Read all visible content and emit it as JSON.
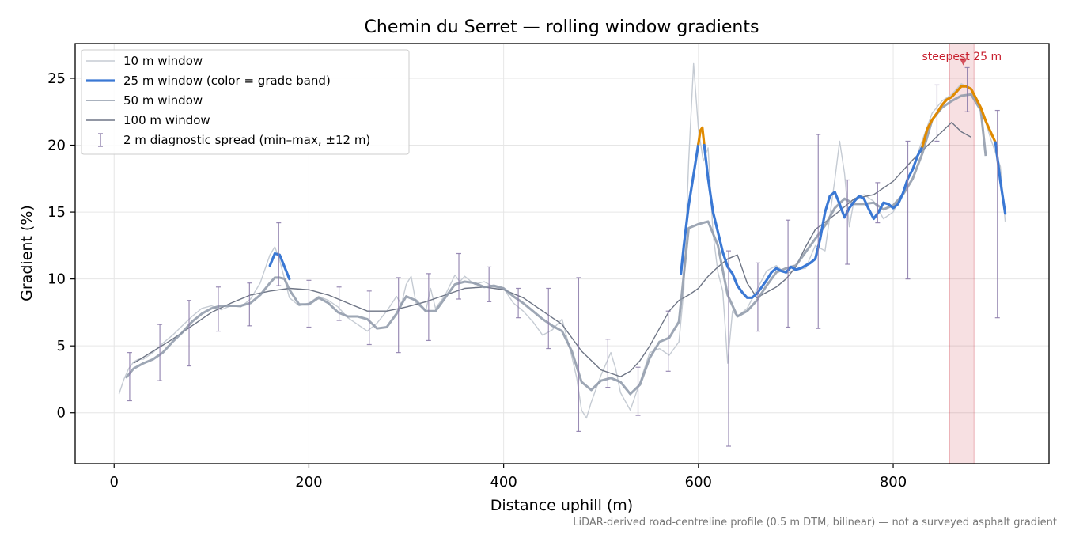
{
  "chart_data": {
    "type": "line",
    "title": "Chemin du Serret — rolling window gradients",
    "xlabel": "Distance uphill (m)",
    "ylabel": "Gradient (%)",
    "xlim": [
      -40,
      960
    ],
    "ylim": [
      -3.8,
      27.6
    ],
    "xticks": [
      0,
      200,
      400,
      600,
      800
    ],
    "yticks": [
      0,
      5,
      10,
      15,
      20,
      25
    ],
    "grid": true,
    "legend_position": "top-left",
    "footnote": "LiDAR-derived road-centreline profile (0.5 m DTM, bilinear) — not a surveyed asphalt gradient",
    "annotation": {
      "text": "steepest 25 m",
      "x": 872,
      "y": 26.2,
      "band": [
        858,
        883
      ],
      "color": "#c8202f"
    },
    "grade_band_colors": {
      "below_20": "#3a78d4",
      "20_to_25": "#e08a00"
    },
    "legend": [
      {
        "label": "10 m window",
        "color": "#c5cbd3",
        "kind": "line"
      },
      {
        "label": "25 m window (color = grade band)",
        "color": "#3a78d4",
        "kind": "thick-line"
      },
      {
        "label": "50 m window",
        "color": "#8d98a8",
        "kind": "line"
      },
      {
        "label": "100 m window",
        "color": "#6e7585",
        "kind": "line"
      },
      {
        "label": "2 m diagnostic spread (min–max, ±12 m)",
        "color": "#8878a8",
        "kind": "errorbar"
      }
    ],
    "series": [
      {
        "name": "10 m window",
        "color": "#c5cbd3",
        "x": [
          5,
          10,
          15,
          20,
          25,
          30,
          40,
          50,
          60,
          70,
          80,
          90,
          100,
          110,
          120,
          130,
          140,
          150,
          160,
          165,
          170,
          175,
          180,
          190,
          200,
          210,
          220,
          230,
          240,
          250,
          260,
          270,
          280,
          290,
          295,
          300,
          305,
          310,
          320,
          325,
          330,
          340,
          350,
          355,
          360,
          370,
          380,
          390,
          400,
          410,
          420,
          430,
          440,
          450,
          460,
          470,
          475,
          480,
          485,
          490,
          500,
          510,
          515,
          520,
          530,
          540,
          550,
          560,
          570,
          580,
          585,
          590,
          595,
          600,
          605,
          610,
          615,
          620,
          625,
          630,
          635,
          640,
          650,
          660,
          670,
          680,
          690,
          700,
          710,
          720,
          730,
          740,
          745,
          750,
          755,
          760,
          770,
          780,
          790,
          800,
          810,
          820,
          830,
          840,
          850,
          860,
          870,
          880,
          890,
          900,
          910,
          915
        ],
        "y": [
          1.4,
          2.5,
          3.3,
          3.8,
          4,
          4,
          4.5,
          5.2,
          5.8,
          6.5,
          7.2,
          7.8,
          8,
          7.7,
          8,
          7.9,
          8.5,
          9.7,
          11.8,
          12.4,
          11.4,
          10,
          8.6,
          8,
          8.2,
          8.7,
          8.4,
          7.9,
          7.1,
          6.6,
          6.1,
          6.7,
          7.6,
          8.7,
          8.1,
          9.6,
          10.2,
          8.2,
          7.6,
          9.3,
          7.8,
          8.8,
          10.3,
          9.8,
          10.2,
          9.6,
          9.8,
          9.4,
          9.3,
          8.2,
          7.6,
          6.8,
          5.8,
          6.2,
          7,
          4.2,
          2.6,
          0.2,
          -0.4,
          0.8,
          2.8,
          4.5,
          3.3,
          1.5,
          0.2,
          2.3,
          4.5,
          4.8,
          4.3,
          5.3,
          9.2,
          18.8,
          26.1,
          21.2,
          18.8,
          19.8,
          13.4,
          10.5,
          9.1,
          3.7,
          7.6,
          7.2,
          7.8,
          9.2,
          10.6,
          11,
          10.4,
          10.7,
          10.8,
          12.5,
          12.1,
          17.4,
          20.3,
          17.9,
          13.9,
          16,
          16.3,
          15.8,
          14.5,
          15,
          16.5,
          18.3,
          20.4,
          22.4,
          23.3,
          23.8,
          24.6,
          24.2,
          22.9,
          20.5,
          18.4,
          14.3
        ]
      },
      {
        "name": "25 m window (color = grade band)",
        "color": "#3a78d4",
        "segments": [
          {
            "band": "below_20",
            "x": [
              160,
              165,
              170,
              175,
              180
            ],
            "y": [
              11,
              11.9,
              11.8,
              10.9,
              10
            ]
          },
          {
            "band": "below_20",
            "x": [
              582,
              585,
              590,
              595,
              600
            ],
            "y": [
              10.4,
              12.5,
              15.5,
              17.8,
              20.1
            ]
          },
          {
            "band": "20_to_25",
            "x": [
              600,
              602,
              604,
              606
            ],
            "y": [
              20.1,
              21.1,
              21.3,
              20
            ]
          },
          {
            "band": "below_20",
            "x": [
              606,
              610,
              615,
              620,
              625,
              630,
              635,
              640,
              645,
              650,
              655,
              660,
              665,
              670,
              675,
              680,
              685,
              690,
              695,
              700,
              705,
              710,
              715,
              720,
              725,
              730,
              735,
              740,
              745,
              750,
              755,
              760,
              765,
              770,
              775,
              780,
              785,
              790,
              795,
              800,
              805,
              810,
              815,
              820,
              825,
              830
            ],
            "y": [
              20,
              17.5,
              15,
              13.5,
              12,
              10.9,
              10.4,
              9.5,
              9,
              8.6,
              8.6,
              8.9,
              9.4,
              9.9,
              10.5,
              10.8,
              10.6,
              10.5,
              10.9,
              10.7,
              10.8,
              11,
              11.2,
              11.5,
              13,
              15,
              16.2,
              16.5,
              15.6,
              14.6,
              15.3,
              15.8,
              16.2,
              16,
              15.2,
              14.5,
              15,
              15.7,
              15.6,
              15.3,
              15.6,
              16.4,
              17.5,
              18.2,
              19.2,
              19.9
            ]
          },
          {
            "band": "20_to_25",
            "x": [
              830,
              835,
              840,
              845,
              850,
              855,
              860,
              865,
              870,
              875,
              880,
              885,
              890,
              895,
              900,
              905
            ],
            "y": [
              19.9,
              21.2,
              21.9,
              22.4,
              23,
              23.4,
              23.6,
              24,
              24.4,
              24.4,
              24.2,
              23.5,
              22.8,
              21.8,
              21,
              20.2
            ]
          },
          {
            "band": "below_20",
            "x": [
              905,
              910,
              915
            ],
            "y": [
              20.2,
              17.3,
              14.9
            ]
          }
        ]
      },
      {
        "name": "50 m window",
        "color": "#8d98a8",
        "x": [
          12,
          20,
          30,
          40,
          50,
          60,
          70,
          80,
          90,
          100,
          110,
          120,
          130,
          140,
          150,
          160,
          165,
          170,
          175,
          180,
          190,
          200,
          210,
          220,
          230,
          240,
          250,
          260,
          270,
          280,
          290,
          295,
          300,
          310,
          320,
          330,
          340,
          350,
          360,
          370,
          380,
          390,
          400,
          410,
          420,
          430,
          440,
          450,
          460,
          470,
          480,
          490,
          500,
          510,
          520,
          530,
          540,
          550,
          560,
          570,
          580,
          590,
          600,
          610,
          620,
          630,
          640,
          650,
          660,
          670,
          680,
          690,
          700,
          710,
          720,
          730,
          740,
          750,
          760,
          770,
          780,
          790,
          800,
          810,
          820,
          830,
          840,
          850,
          860,
          870,
          880,
          890,
          895
        ],
        "y": [
          2.6,
          3.3,
          3.7,
          4,
          4.5,
          5.3,
          6,
          6.8,
          7.4,
          7.8,
          8,
          8,
          8,
          8.2,
          8.8,
          9.7,
          10.1,
          10.1,
          10,
          9.2,
          8.1,
          8.1,
          8.6,
          8.2,
          7.5,
          7.2,
          7.2,
          7,
          6.3,
          6.4,
          7.4,
          8.1,
          8.7,
          8.4,
          7.6,
          7.6,
          8.6,
          9.6,
          9.8,
          9.7,
          9.4,
          9.5,
          9.3,
          8.7,
          8.2,
          7.6,
          7,
          6.5,
          6.1,
          4.6,
          2.3,
          1.7,
          2.4,
          2.6,
          2.3,
          1.4,
          2.1,
          4.1,
          5.3,
          5.6,
          6.8,
          13.8,
          14.1,
          14.3,
          12.5,
          8.8,
          7.2,
          7.6,
          8.4,
          9.5,
          10.5,
          10.8,
          11,
          12,
          13,
          14,
          15.3,
          16,
          15.6,
          15.6,
          15.7,
          15.2,
          15.5,
          16.3,
          17.5,
          19.4,
          21.9,
          22.8,
          23.3,
          23.7,
          23.8,
          22.6,
          19.2
        ]
      },
      {
        "name": "100 m window",
        "color": "#6e7585",
        "x": [
          20,
          40,
          60,
          80,
          100,
          120,
          140,
          160,
          180,
          200,
          220,
          240,
          260,
          280,
          300,
          320,
          340,
          360,
          380,
          400,
          420,
          440,
          460,
          480,
          500,
          520,
          530,
          540,
          550,
          560,
          570,
          580,
          590,
          600,
          610,
          620,
          630,
          640,
          650,
          660,
          670,
          680,
          690,
          700,
          710,
          720,
          740,
          760,
          780,
          800,
          820,
          840,
          860,
          870,
          880
        ],
        "y": [
          3.7,
          4.6,
          5.5,
          6.5,
          7.5,
          8.2,
          8.8,
          9.1,
          9.3,
          9.2,
          8.8,
          8.2,
          7.6,
          7.6,
          7.9,
          8.3,
          8.8,
          9.3,
          9.4,
          9.2,
          8.6,
          7.6,
          6.6,
          4.6,
          3.2,
          2.7,
          3.1,
          3.9,
          5,
          6.3,
          7.6,
          8.4,
          8.8,
          9.3,
          10.2,
          10.9,
          11.5,
          11.8,
          9.7,
          8.6,
          9,
          9.4,
          10,
          10.9,
          12.4,
          13.7,
          14.8,
          16,
          16.3,
          17.3,
          18.9,
          20.3,
          21.7,
          21,
          20.6
        ]
      }
    ],
    "error_bars": {
      "name": "2 m diagnostic spread (min–max, ±12 m)",
      "color": "#8878a8",
      "points": [
        {
          "x": 16,
          "low": 0.9,
          "high": 4.5
        },
        {
          "x": 47,
          "low": 2.4,
          "high": 6.6
        },
        {
          "x": 77,
          "low": 3.5,
          "high": 8.4
        },
        {
          "x": 107,
          "low": 6.1,
          "high": 9.4
        },
        {
          "x": 139,
          "low": 6.5,
          "high": 9.7
        },
        {
          "x": 169,
          "low": 9.5,
          "high": 14.2
        },
        {
          "x": 200,
          "low": 6.4,
          "high": 9.9
        },
        {
          "x": 231,
          "low": 6.9,
          "high": 9.4
        },
        {
          "x": 262,
          "low": 5.1,
          "high": 9.1
        },
        {
          "x": 292,
          "low": 4.5,
          "high": 10.1
        },
        {
          "x": 323,
          "low": 5.4,
          "high": 10.4
        },
        {
          "x": 354,
          "low": 8.5,
          "high": 11.9
        },
        {
          "x": 385,
          "low": 8.3,
          "high": 10.9
        },
        {
          "x": 415,
          "low": 7.1,
          "high": 9.3
        },
        {
          "x": 446,
          "low": 4.8,
          "high": 9.3
        },
        {
          "x": 477,
          "low": -1.4,
          "high": 10.1
        },
        {
          "x": 507,
          "low": 1.9,
          "high": 5.5
        },
        {
          "x": 538,
          "low": -0.2,
          "high": 3.4
        },
        {
          "x": 569,
          "low": 3.1,
          "high": 7.6
        },
        {
          "x": 631,
          "low": -2.5,
          "high": 12.1
        },
        {
          "x": 661,
          "low": 6.1,
          "high": 11.2
        },
        {
          "x": 692,
          "low": 6.4,
          "high": 14.4
        },
        {
          "x": 723,
          "low": 6.3,
          "high": 20.8
        },
        {
          "x": 753,
          "low": 11.1,
          "high": 17.4
        },
        {
          "x": 784,
          "low": 14.2,
          "high": 17.2
        },
        {
          "x": 815,
          "low": 10,
          "high": 20.3
        },
        {
          "x": 845,
          "low": 20.3,
          "high": 24.5
        },
        {
          "x": 876,
          "low": 22.5,
          "high": 25.8
        },
        {
          "x": 907,
          "low": 7.1,
          "high": 22.6
        }
      ]
    }
  }
}
